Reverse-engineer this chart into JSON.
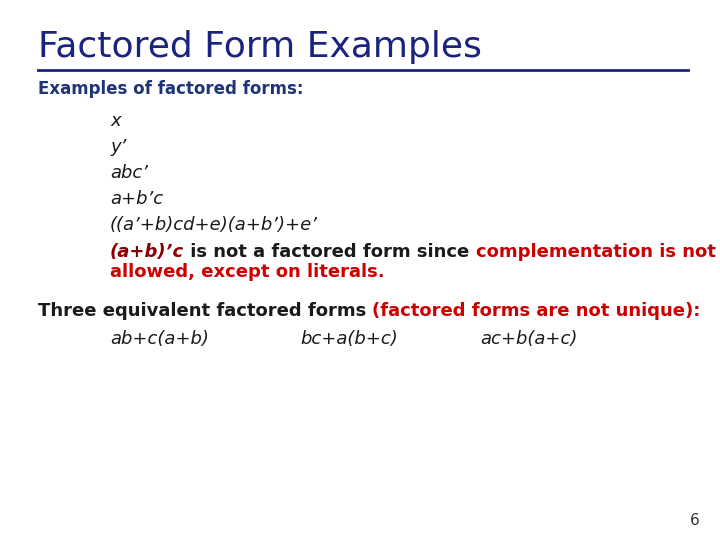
{
  "title": "Factored Form Examples",
  "title_color": "#1a237e",
  "title_fontsize": 26,
  "line_color": "#1a237e",
  "background_color": "#ffffff",
  "subtitle_color": "#1f3477",
  "subtitle_fontsize": 12,
  "subtitle_text": "Examples of factored forms:",
  "items": [
    "x",
    "y’",
    "abc’",
    "a+b’c",
    "((a’+b)cd+e)(a+b’)+e’"
  ],
  "item_color": "#1a1a1a",
  "item_fontsize": 13,
  "not_factored_color_dark": "#8b0000",
  "not_factored_color_black": "#1a1a1a",
  "not_factored_color_red": "#cc0000",
  "three_equiv_color_black": "#1a1a1a",
  "three_equiv_color_red": "#cc0000",
  "equiv_forms": [
    "ab+c(a+b)",
    "bc+a(b+c)",
    "ac+b(a+c)"
  ],
  "page_number": "6",
  "page_number_fontsize": 11,
  "page_number_color": "#333333"
}
